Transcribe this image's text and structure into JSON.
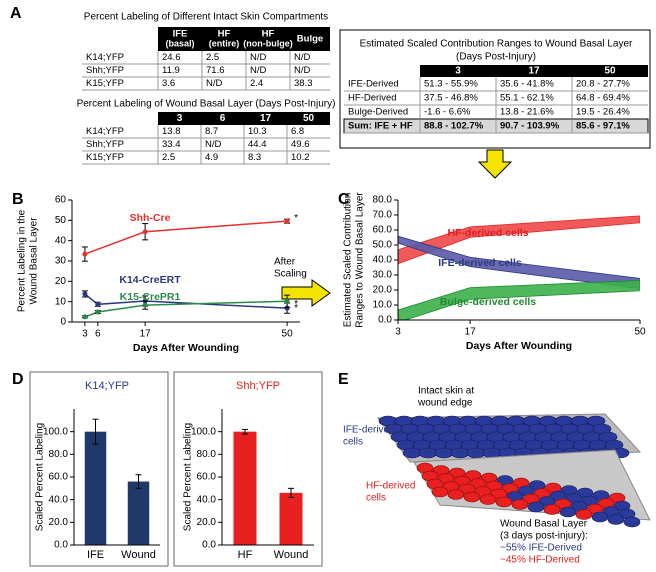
{
  "panels": [
    "A",
    "B",
    "C",
    "D",
    "E"
  ],
  "tables": [
    {
      "title": "Percent Labeling of Different Intact Skin Compartments",
      "header": [
        {
          "label": "IFE",
          "sub": "(basal)"
        },
        {
          "label": "HF",
          "sub": "(entire)"
        },
        {
          "label": "HF",
          "sub": "(non-bulge)"
        },
        {
          "label": "Bulge"
        }
      ],
      "rows": [
        [
          "K14;YFP",
          "24.6",
          "2.5",
          "N/D",
          "N/D"
        ],
        [
          "Shh;YFP",
          "11.9",
          "71.6",
          "N/D",
          "N/D"
        ],
        [
          "K15;YFP",
          "3.6",
          "N/D",
          "2.4",
          "38.3"
        ]
      ]
    },
    {
      "title": "Percent Labeling of Wound Basal Layer (Days Post-Injury)",
      "header": [
        3,
        6,
        17,
        50
      ],
      "rows": [
        [
          "K14;YFP",
          "13.8",
          "8.7",
          "10.3",
          "6.8"
        ],
        [
          "Shh;YFP",
          "33.4",
          "N/D",
          "44.4",
          "49.6"
        ],
        [
          "K15;YFP",
          "2.5",
          "4.9",
          "8.3",
          "10.2"
        ]
      ]
    },
    {
      "title": "Estimated Scaled Contribution Ranges to Wound Basal Layer",
      "subtitle": "(Days Post-Injury)",
      "header": [
        3,
        17,
        50
      ],
      "rows": [
        [
          "IFE-Derived",
          "51.3 - 55.9%",
          "35.6 - 41.8%",
          "20.8 - 27.7%"
        ],
        [
          "HF-Derived",
          "37.5 - 46.8%",
          "55.1 - 62.1%",
          "64.8 - 69.4%"
        ],
        [
          "Bulge-Derived",
          "-1.6 - 6.6%",
          "13.8 - 21.6%",
          "19.5 - 26.4%"
        ]
      ],
      "summary_row": [
        "Sum: IFE + HF",
        "88.8 - 102.7%",
        "90.7 - 103.9%",
        "85.6 - 97.1%"
      ]
    }
  ],
  "transition_label": [
    "After",
    "Scaling"
  ],
  "chart_data": [
    {
      "type": "line",
      "ylabel": [
        "Percent Labeling in the",
        "Wound Basal Layer"
      ],
      "xlabel": "Days After Wounding",
      "xlim": [
        0,
        53
      ],
      "xticks": [
        3,
        6,
        17,
        50
      ],
      "ylim": [
        0,
        60
      ],
      "yticks": [
        0,
        10,
        20,
        30,
        40,
        50,
        60
      ],
      "series": [
        {
          "name": "Shh-Cre",
          "color": "#e8302a",
          "x": [
            3,
            17,
            50
          ],
          "values": [
            33.4,
            44.4,
            49.6
          ],
          "errors": [
            3.5,
            4,
            1
          ],
          "flag": "*"
        },
        {
          "name": "K14-CreERT",
          "color": "#2b3a80",
          "x": [
            3,
            6,
            17,
            50
          ],
          "values": [
            13.8,
            8.7,
            10.3,
            6.8
          ],
          "errors": [
            1.5,
            1,
            2.5,
            2.5
          ],
          "flag": "*"
        },
        {
          "name": "K15-CrePR1",
          "color": "#2a8a4a",
          "x": [
            3,
            6,
            17,
            50
          ],
          "values": [
            2.5,
            4.9,
            8.3,
            10.2
          ],
          "errors": [
            0.5,
            0.7,
            2,
            3
          ],
          "flag": "*"
        }
      ]
    },
    {
      "type": "range-area",
      "ylabel": [
        "Estimated Scaled Contribution",
        "Ranges to Wound Basal Layer"
      ],
      "xlabel": "Days After Wounding",
      "x": [
        3,
        17,
        50
      ],
      "xlim": [
        3,
        50
      ],
      "xticks": [
        3,
        17,
        50
      ],
      "ylim": [
        0,
        80
      ],
      "yticks": [
        {
          "value": 0,
          "label": "0.0"
        },
        {
          "value": 10,
          "label": "10.0"
        },
        {
          "value": 20,
          "label": "20.0"
        },
        {
          "value": 30,
          "label": "30.0"
        },
        {
          "value": 40,
          "label": "40.0"
        },
        {
          "value": 50,
          "label": "50.0"
        },
        {
          "value": 60,
          "label": "60.0"
        },
        {
          "value": 70,
          "label": "70.0"
        },
        {
          "value": 80,
          "label": "80.0"
        }
      ],
      "series": [
        {
          "name": "HF-derived cells",
          "color": "#f04848",
          "label_color": "#e02020",
          "low": [
            37.5,
            55.1,
            64.8
          ],
          "high": [
            46.8,
            62.1,
            69.4
          ]
        },
        {
          "name": "IFE-derived cells",
          "color": "#5a5aaa",
          "label_color": "#2b3a80",
          "low": [
            51.3,
            35.6,
            20.8
          ],
          "high": [
            55.9,
            41.8,
            27.7
          ]
        },
        {
          "name": "Bulge-derived cells",
          "color": "#3cb04a",
          "label_color": "#1f8a30",
          "low": [
            -1.6,
            13.8,
            19.5
          ],
          "high": [
            6.6,
            21.6,
            26.4
          ]
        }
      ]
    },
    {
      "type": "bar",
      "title": "K14;YFP",
      "title_color": "#2b3a80",
      "ylabel": "Scaled Percent Labeling",
      "categories": [
        "IFE",
        "Wound"
      ],
      "values": [
        100,
        56
      ],
      "errors": [
        11,
        6
      ],
      "color": "#1f3a6a",
      "ylim": [
        0,
        120
      ],
      "yticks": [
        {
          "value": 0,
          "label": "0.0"
        },
        {
          "value": 20,
          "label": "20.0"
        },
        {
          "value": 40,
          "label": "40.0"
        },
        {
          "value": 60,
          "label": "60.0"
        },
        {
          "value": 80,
          "label": "80.0"
        },
        {
          "value": 100,
          "label": "100.0"
        }
      ]
    },
    {
      "type": "bar",
      "title": "Shh;YFP",
      "title_color": "#e82020",
      "ylabel": "Scaled Percent Labeling",
      "categories": [
        "HF",
        "Wound"
      ],
      "values": [
        100,
        46
      ],
      "errors": [
        2,
        4
      ],
      "color": "#e82020",
      "ylim": [
        0,
        120
      ],
      "yticks": [
        {
          "value": 0,
          "label": "0.0"
        },
        {
          "value": 20,
          "label": "20.0"
        },
        {
          "value": 40,
          "label": "40.0"
        },
        {
          "value": 60,
          "label": "60.0"
        },
        {
          "value": 80,
          "label": "80.0"
        },
        {
          "value": 100,
          "label": "100.0"
        }
      ]
    }
  ],
  "diagram": {
    "intact_label": [
      "Intact skin at",
      "wound edge"
    ],
    "ife_label": [
      "IFE-derived",
      "cells"
    ],
    "hf_label": [
      "HF-derived",
      "cells"
    ],
    "wound_label": [
      "Wound Basal Layer",
      "(3 days post-injury):"
    ],
    "ife_share": "~55% IFE-Derived",
    "hf_share": "~45% HF-Derived"
  }
}
